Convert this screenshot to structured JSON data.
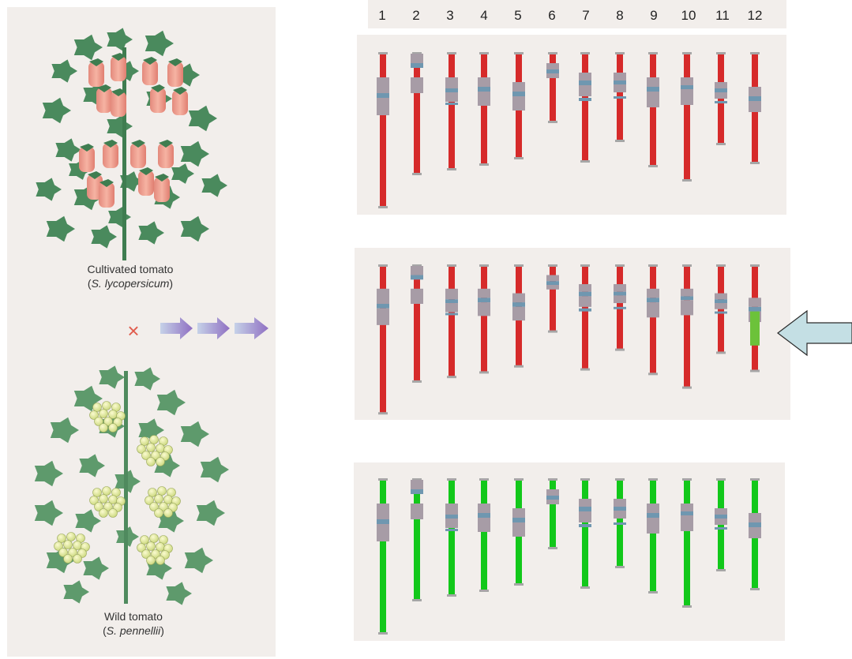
{
  "chromosome_numbers": [
    "1",
    "2",
    "3",
    "4",
    "5",
    "6",
    "7",
    "8",
    "9",
    "10",
    "11",
    "12"
  ],
  "cultivated": {
    "label": "Cultivated tomato",
    "open": "(",
    "species": "S. lycopersicum",
    "close": ")"
  },
  "wild": {
    "label": "Wild tomato",
    "open": "(",
    "species": "S. pennellii",
    "close": ")"
  },
  "cross_symbol": "×",
  "colors": {
    "cultivated_chromosome": "#d62a2a",
    "wild_chromosome": "#12c81a",
    "introgression": "#6cc23a",
    "band_grey": "#a79ca6",
    "band_blue": "#6f97b0",
    "tip": "#a6a6a6",
    "pointer_fill": "#c4dfe4",
    "pointer_stroke": "#2a2a2a",
    "cross": "#e05b4c",
    "arrow": "#9a7fc6"
  },
  "introgression_line": {
    "chromosome": "12"
  }
}
